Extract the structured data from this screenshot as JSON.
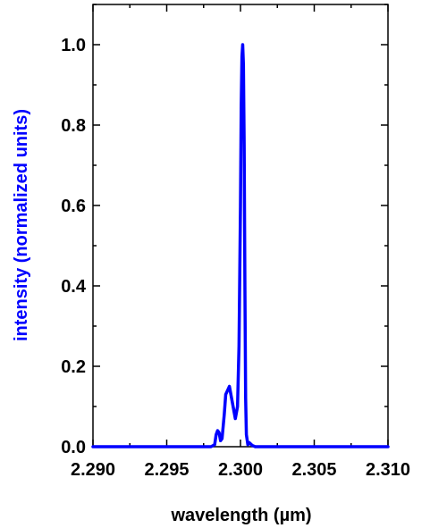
{
  "chart_data": {
    "type": "line",
    "title": "",
    "xlabel": "wavelength (µm)",
    "ylabel": "intensity (normalized units)",
    "xlim": [
      2.29,
      2.31
    ],
    "ylim": [
      0.0,
      1.1
    ],
    "x_ticks": [
      2.29,
      2.295,
      2.3,
      2.305,
      2.31
    ],
    "x_tick_labels": [
      "2.290",
      "2.295",
      "2.300",
      "2.305",
      "2.310"
    ],
    "y_ticks": [
      0.0,
      0.2,
      0.4,
      0.6,
      0.8,
      1.0
    ],
    "y_tick_labels": [
      "0.0",
      "0.2",
      "0.4",
      "0.6",
      "0.8",
      "1.0"
    ],
    "grid": false,
    "legend": "none",
    "colors": {
      "series": "#0000ff",
      "ylabel": "#0000ff",
      "xlabel": "#000000",
      "axes": "#000000"
    },
    "series": [
      {
        "x": [
          2.29,
          2.295,
          2.298,
          2.29825,
          2.29835,
          2.29845,
          2.29855,
          2.29865,
          2.29875,
          2.2989,
          2.299,
          2.29925,
          2.2995,
          2.29965,
          2.2998,
          2.2999,
          2.2999,
          2.3,
          2.30005,
          2.3001,
          2.30015,
          2.3002,
          2.30025,
          2.3003,
          2.30035,
          2.3004,
          2.3005,
          2.3006,
          2.3008,
          2.301,
          2.305,
          2.31
        ],
        "y": [
          0.0,
          0.0,
          0.0,
          0.005,
          0.03,
          0.04,
          0.035,
          0.015,
          0.02,
          0.08,
          0.13,
          0.15,
          0.1,
          0.07,
          0.1,
          0.25,
          0.25,
          0.6,
          0.85,
          0.97,
          1.0,
          0.95,
          0.75,
          0.4,
          0.12,
          0.03,
          0.005,
          0.01,
          0.003,
          0.0,
          0.0,
          0.0
        ]
      }
    ]
  }
}
